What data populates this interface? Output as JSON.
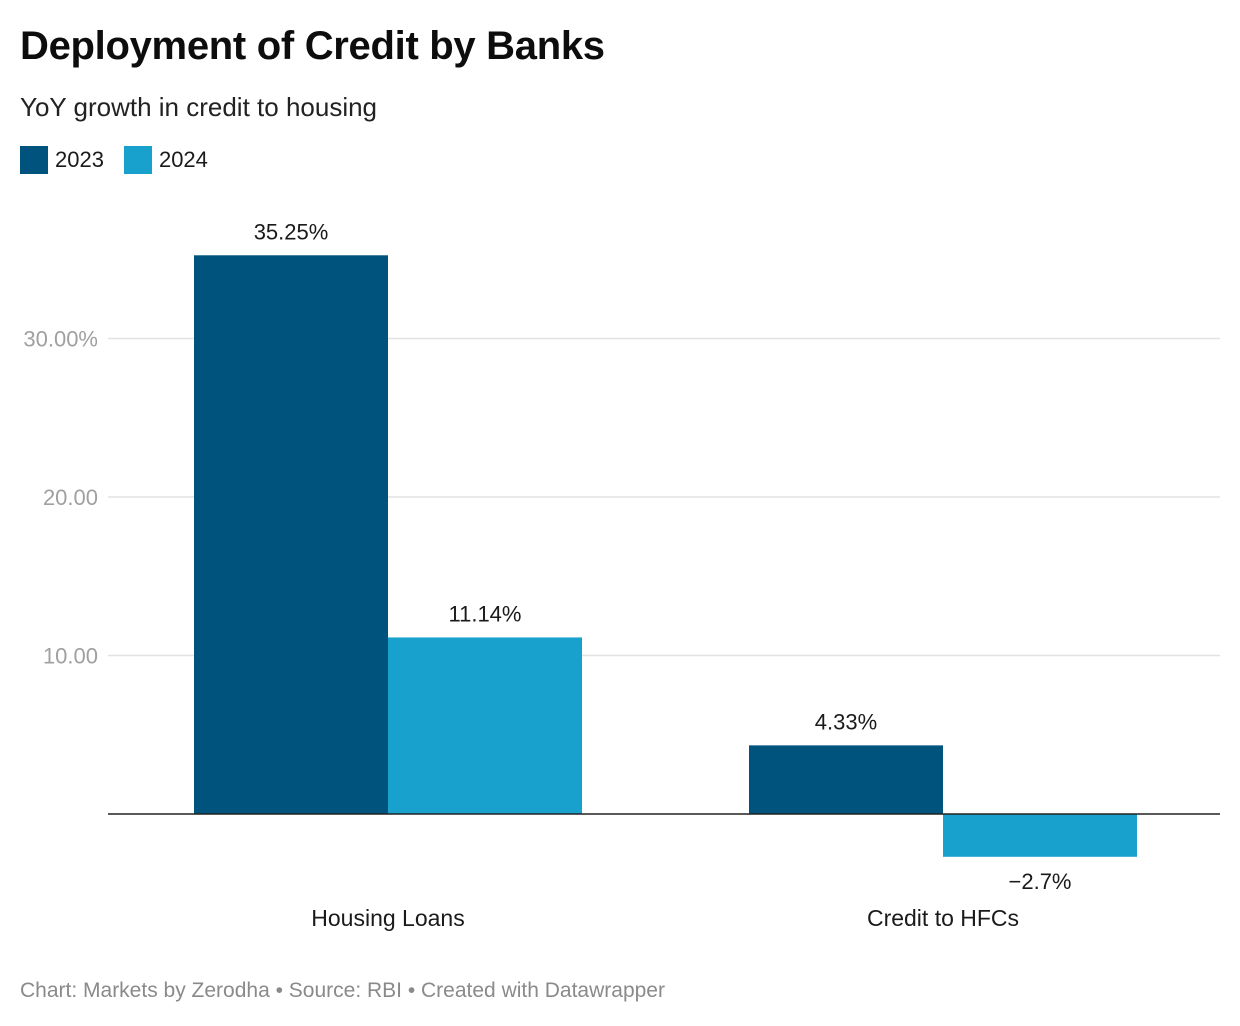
{
  "header": {
    "title": "Deployment of Credit by Banks",
    "subtitle": "YoY growth in credit to housing"
  },
  "legend": {
    "items": [
      {
        "label": "2023",
        "color": "#00537c"
      },
      {
        "label": "2024",
        "color": "#19a1ce"
      }
    ]
  },
  "chart_data": {
    "type": "bar",
    "categories": [
      "Housing Loans",
      "Credit to HFCs"
    ],
    "series": [
      {
        "name": "2023",
        "values": [
          35.25,
          4.33
        ],
        "labels": [
          "35.25%",
          "4.33%"
        ],
        "color": "#00537c"
      },
      {
        "name": "2024",
        "values": [
          11.14,
          -2.7
        ],
        "labels": [
          "11.14%",
          "−2.7%"
        ],
        "color": "#19a1ce"
      }
    ],
    "yticks": [
      {
        "value": 30,
        "label": "30.00%"
      },
      {
        "value": 20,
        "label": "20.00"
      },
      {
        "value": 10,
        "label": "10.00"
      }
    ],
    "ylim": [
      -2.7,
      35.25
    ],
    "grid": true,
    "legend_position": "top-left"
  },
  "footer": {
    "text": "Chart: Markets by Zerodha • Source: RBI • Created with Datawrapper"
  }
}
